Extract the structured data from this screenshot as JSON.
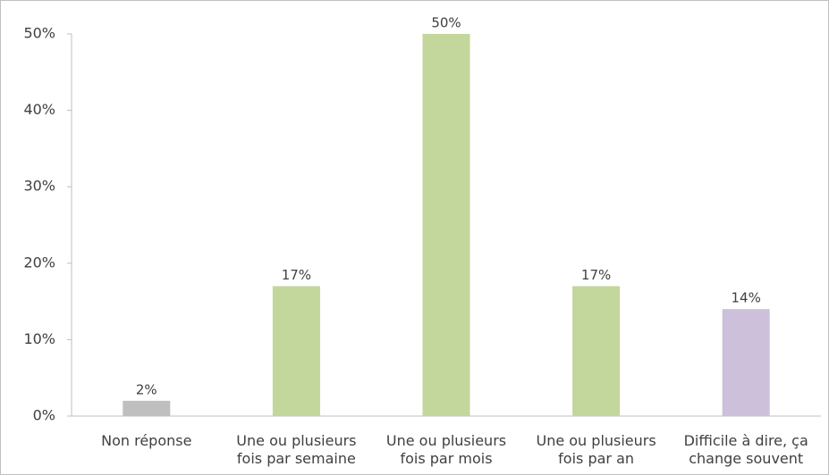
{
  "chart_data": {
    "type": "bar",
    "categories": [
      "Non réponse",
      "Une ou plusieurs\nfois par semaine",
      "Une ou plusieurs\nfois par mois",
      "Une ou plusieurs\nfois par an",
      "Difficile à dire, ça\nchange souvent"
    ],
    "values": [
      2,
      17,
      50,
      17,
      14
    ],
    "value_labels": [
      "2%",
      "17%",
      "50%",
      "17%",
      "14%"
    ],
    "colors": [
      "#bfbfbf",
      "#c3d69b",
      "#c3d69b",
      "#c3d69b",
      "#ccc0da"
    ],
    "ylim": [
      0,
      50
    ],
    "yticks": [
      {
        "value": 0,
        "label": "0%"
      },
      {
        "value": 10,
        "label": "10%"
      },
      {
        "value": 20,
        "label": "20%"
      },
      {
        "value": 30,
        "label": "30%"
      },
      {
        "value": 40,
        "label": "40%"
      },
      {
        "value": 50,
        "label": "50%"
      }
    ]
  }
}
